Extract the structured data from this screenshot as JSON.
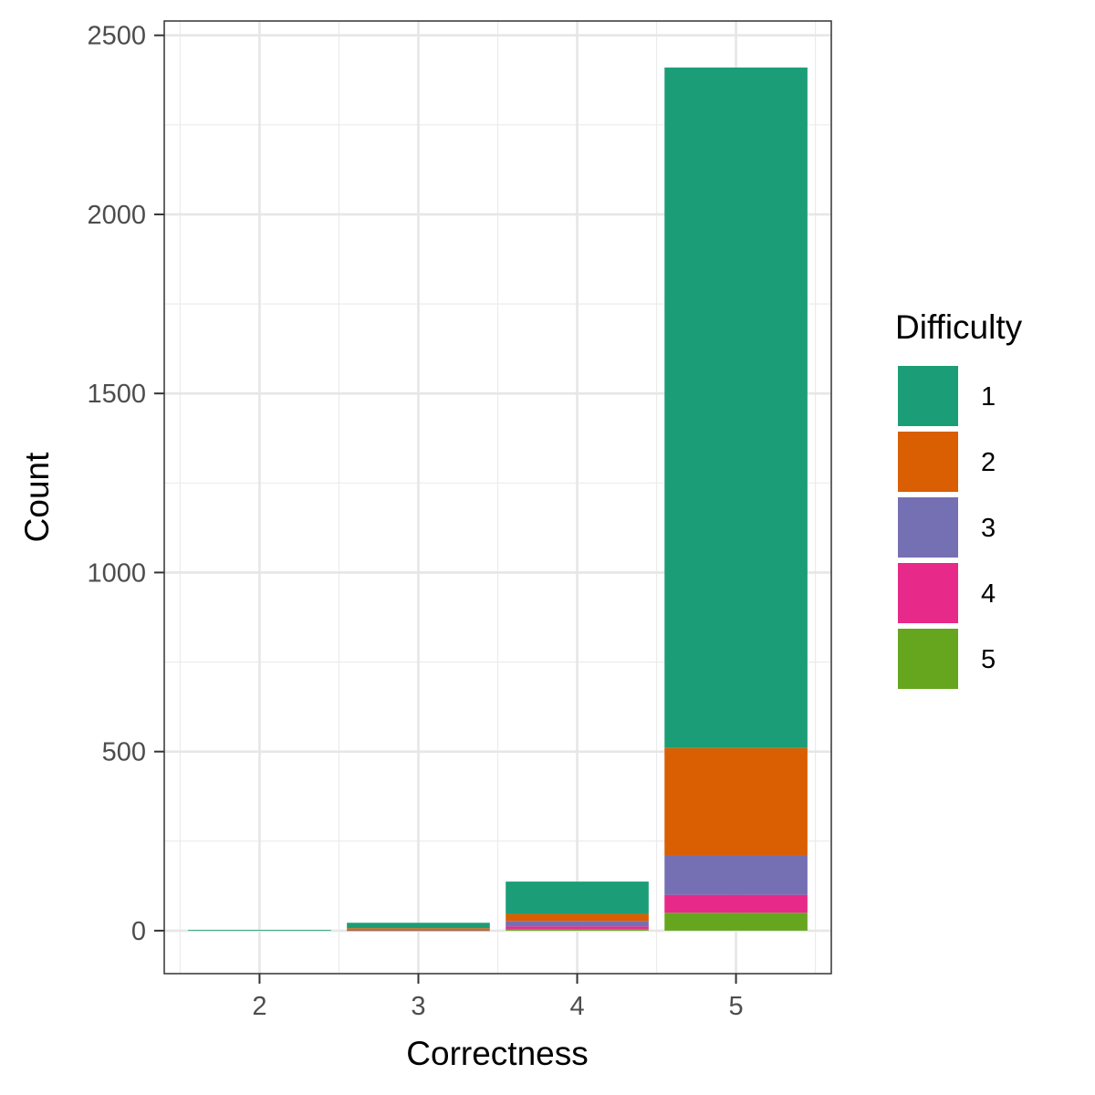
{
  "chart_data": {
    "type": "bar",
    "stacked": true,
    "title": "",
    "xlabel": "Correctness",
    "ylabel": "Count",
    "categories": [
      "2",
      "3",
      "4",
      "5"
    ],
    "ylim": [
      -120,
      2540
    ],
    "yticks": [
      0,
      500,
      1000,
      1500,
      2000,
      2500
    ],
    "grid": true,
    "legend": {
      "title": "Difficulty",
      "placement": "right"
    },
    "stack_order": [
      "5",
      "4",
      "3",
      "2",
      "1"
    ],
    "series": [
      {
        "name": "1",
        "color": "#1B9E77",
        "values": [
          2,
          15,
          90,
          1900
        ]
      },
      {
        "name": "2",
        "color": "#D95F02",
        "values": [
          0,
          2,
          20,
          300
        ]
      },
      {
        "name": "3",
        "color": "#7570B3",
        "values": [
          0,
          2,
          15,
          110
        ]
      },
      {
        "name": "4",
        "color": "#E7298A",
        "values": [
          0,
          2,
          7,
          50
        ]
      },
      {
        "name": "5",
        "color": "#66A61E",
        "values": [
          0,
          1,
          5,
          50
        ]
      }
    ]
  }
}
